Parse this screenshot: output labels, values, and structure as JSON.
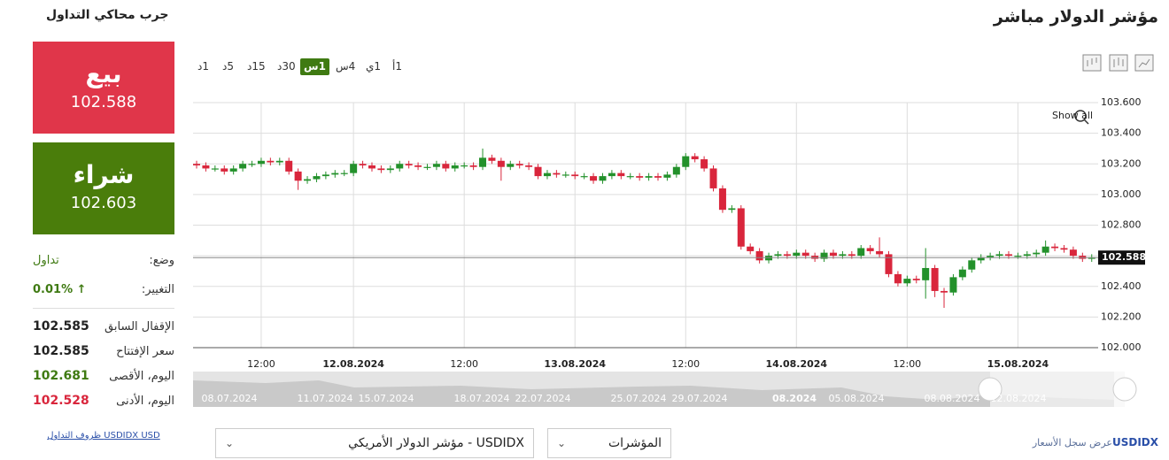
{
  "header": {
    "title": "مؤشر الدولار مباشر",
    "simulator": "جرب محاكي التداول"
  },
  "sell": {
    "label": "بيع",
    "price": "102.588"
  },
  "buy": {
    "label": "شراء",
    "price": "102.603"
  },
  "stats": {
    "status_label": "وضع:",
    "status_value": "تداول",
    "change_label": "التغيير:",
    "change_value": "0.01%",
    "rows": [
      [
        "الإقفال السابق",
        "102.585"
      ],
      [
        "سعر الإفتتاح",
        "102.585"
      ],
      [
        "اليوم، الأقصى",
        "102.681"
      ],
      [
        "اليوم، الأدنى",
        "102.528"
      ]
    ]
  },
  "trading_conditions": "USDIDX USD ظروف التداول",
  "timeframes": [
    "1د",
    "5د",
    "15د",
    "30د",
    "1س",
    "4س",
    "1ي",
    "1أ"
  ],
  "active_timeframe": "1س",
  "show_all": "Show all",
  "navigator": {
    "labels": [
      "08.07.2024",
      "11.07.2024",
      "15.07.2024",
      "18.07.2024",
      "22.07.2024",
      "25.07.2024",
      "29.07.2024",
      "08.2024",
      "05.08.2024",
      "08.08.2024",
      "12.08.2024"
    ]
  },
  "footer": {
    "instrument": "USDIDX - مؤشر الدولار الأمريكي",
    "indicators": "المؤشرات",
    "symbol": "USDIDX",
    "history": "عرض سجل الأسعار"
  },
  "chart_data": {
    "type": "candlestick",
    "up_color": "#23912b",
    "down_color": "#d9263c",
    "grid": true,
    "ylim": [
      102.0,
      103.6
    ],
    "yticks": [
      {
        "value": 102.0,
        "label": "102.000"
      },
      {
        "value": 102.2,
        "label": "102.200"
      },
      {
        "value": 102.4,
        "label": "102.400"
      },
      {
        "value": 102.6,
        "label": "102.600"
      },
      {
        "value": 102.8,
        "label": "102.800"
      },
      {
        "value": 103.0,
        "label": "103.000"
      },
      {
        "value": 103.2,
        "label": "103.200"
      },
      {
        "value": 103.4,
        "label": "103.400"
      },
      {
        "value": 103.6,
        "label": "103.600"
      }
    ],
    "last_price": 102.588,
    "categories": [
      null,
      null,
      null,
      null,
      null,
      null,
      null,
      "12:00",
      null,
      null,
      null,
      null,
      null,
      null,
      null,
      null,
      null,
      "12.08.2024",
      null,
      null,
      null,
      null,
      null,
      null,
      null,
      null,
      null,
      null,
      null,
      "12:00",
      null,
      null,
      null,
      null,
      null,
      null,
      null,
      null,
      null,
      null,
      null,
      "13.08.2024",
      null,
      null,
      null,
      null,
      null,
      null,
      null,
      null,
      null,
      null,
      null,
      "12:00",
      null,
      null,
      null,
      null,
      null,
      null,
      null,
      null,
      null,
      null,
      null,
      "14.08.2024",
      null,
      null,
      null,
      null,
      null,
      null,
      null,
      null,
      null,
      null,
      null,
      "12:00",
      null,
      null,
      null,
      null,
      null,
      null,
      null,
      null,
      null,
      null,
      null,
      "15.08.2024",
      null,
      null,
      null,
      null,
      null,
      null,
      null,
      null
    ],
    "open": [
      103.2,
      103.19,
      103.17,
      103.17,
      103.15,
      103.17,
      103.2,
      103.2,
      103.22,
      103.21,
      103.22,
      103.15,
      103.09,
      103.1,
      103.12,
      103.13,
      103.14,
      103.14,
      103.2,
      103.19,
      103.17,
      103.16,
      103.17,
      103.2,
      103.19,
      103.18,
      103.18,
      103.2,
      103.17,
      103.19,
      103.19,
      103.18,
      103.24,
      103.22,
      103.18,
      103.2,
      103.19,
      103.18,
      103.12,
      103.14,
      103.13,
      103.13,
      103.12,
      103.12,
      103.09,
      103.12,
      103.14,
      103.12,
      103.12,
      103.11,
      103.12,
      103.11,
      103.13,
      103.18,
      103.25,
      103.23,
      103.17,
      103.04,
      102.9,
      102.91,
      102.66,
      102.63,
      102.57,
      102.6,
      102.61,
      102.6,
      102.62,
      102.6,
      102.58,
      102.62,
      102.6,
      102.61,
      102.6,
      102.65,
      102.63,
      102.61,
      102.48,
      102.42,
      102.45,
      102.44,
      102.52,
      102.37,
      102.36,
      102.46,
      102.51,
      102.57,
      102.59,
      102.6,
      102.61,
      102.6,
      102.6,
      102.61,
      102.62,
      102.66,
      102.65,
      102.64,
      102.6,
      102.58
    ],
    "close": [
      103.19,
      103.17,
      103.17,
      103.15,
      103.17,
      103.2,
      103.2,
      103.22,
      103.21,
      103.22,
      103.15,
      103.09,
      103.1,
      103.12,
      103.13,
      103.14,
      103.14,
      103.2,
      103.19,
      103.17,
      103.16,
      103.17,
      103.2,
      103.19,
      103.18,
      103.18,
      103.2,
      103.17,
      103.19,
      103.19,
      103.18,
      103.24,
      103.22,
      103.18,
      103.2,
      103.19,
      103.18,
      103.12,
      103.14,
      103.13,
      103.13,
      103.12,
      103.12,
      103.09,
      103.12,
      103.14,
      103.12,
      103.12,
      103.11,
      103.12,
      103.11,
      103.13,
      103.18,
      103.25,
      103.23,
      103.17,
      103.04,
      102.9,
      102.91,
      102.66,
      102.63,
      102.57,
      102.6,
      102.61,
      102.6,
      102.62,
      102.6,
      102.58,
      102.62,
      102.6,
      102.61,
      102.6,
      102.65,
      102.63,
      102.61,
      102.48,
      102.42,
      102.45,
      102.44,
      102.52,
      102.37,
      102.36,
      102.46,
      102.51,
      102.57,
      102.59,
      102.6,
      102.61,
      102.6,
      102.6,
      102.61,
      102.62,
      102.66,
      102.65,
      102.64,
      102.6,
      102.58,
      102.59
    ],
    "high": [
      103.22,
      103.21,
      103.19,
      103.19,
      103.19,
      103.22,
      103.22,
      103.24,
      103.24,
      103.24,
      103.24,
      103.17,
      103.12,
      103.14,
      103.15,
      103.16,
      103.16,
      103.22,
      103.22,
      103.21,
      103.19,
      103.19,
      103.22,
      103.22,
      103.21,
      103.2,
      103.22,
      103.22,
      103.21,
      103.21,
      103.21,
      103.3,
      103.26,
      103.24,
      103.22,
      103.22,
      103.21,
      103.2,
      103.16,
      103.16,
      103.15,
      103.15,
      103.14,
      103.14,
      103.14,
      103.16,
      103.16,
      103.14,
      103.14,
      103.14,
      103.14,
      103.15,
      103.2,
      103.27,
      103.27,
      103.25,
      103.19,
      103.06,
      102.93,
      102.93,
      102.68,
      102.65,
      102.62,
      102.63,
      102.63,
      102.64,
      102.64,
      102.62,
      102.64,
      102.64,
      102.63,
      102.63,
      102.67,
      102.67,
      102.72,
      102.63,
      102.5,
      102.47,
      102.47,
      102.65,
      102.54,
      102.39,
      102.48,
      102.53,
      102.59,
      102.61,
      102.62,
      102.63,
      102.63,
      102.62,
      102.63,
      102.64,
      102.7,
      102.68,
      102.67,
      102.66,
      102.62,
      102.61
    ],
    "low": [
      103.17,
      103.15,
      103.15,
      103.13,
      103.13,
      103.15,
      103.18,
      103.18,
      103.19,
      103.19,
      103.13,
      103.03,
      103.07,
      103.08,
      103.1,
      103.11,
      103.12,
      103.12,
      103.17,
      103.15,
      103.14,
      103.14,
      103.15,
      103.17,
      103.16,
      103.16,
      103.16,
      103.15,
      103.15,
      103.17,
      103.16,
      103.16,
      103.2,
      103.09,
      103.16,
      103.17,
      103.16,
      103.1,
      103.1,
      103.11,
      103.11,
      103.1,
      103.1,
      103.07,
      103.07,
      103.1,
      103.1,
      103.1,
      103.09,
      103.09,
      103.09,
      103.09,
      103.11,
      103.16,
      103.21,
      103.15,
      103.02,
      102.88,
      102.88,
      102.64,
      102.61,
      102.55,
      102.55,
      102.58,
      102.58,
      102.58,
      102.58,
      102.56,
      102.56,
      102.58,
      102.58,
      102.58,
      102.58,
      102.61,
      102.59,
      102.46,
      102.4,
      102.4,
      102.42,
      102.32,
      102.33,
      102.26,
      102.34,
      102.44,
      102.49,
      102.55,
      102.57,
      102.58,
      102.58,
      102.58,
      102.58,
      102.59,
      102.6,
      102.63,
      102.62,
      102.58,
      102.56,
      102.56
    ]
  }
}
